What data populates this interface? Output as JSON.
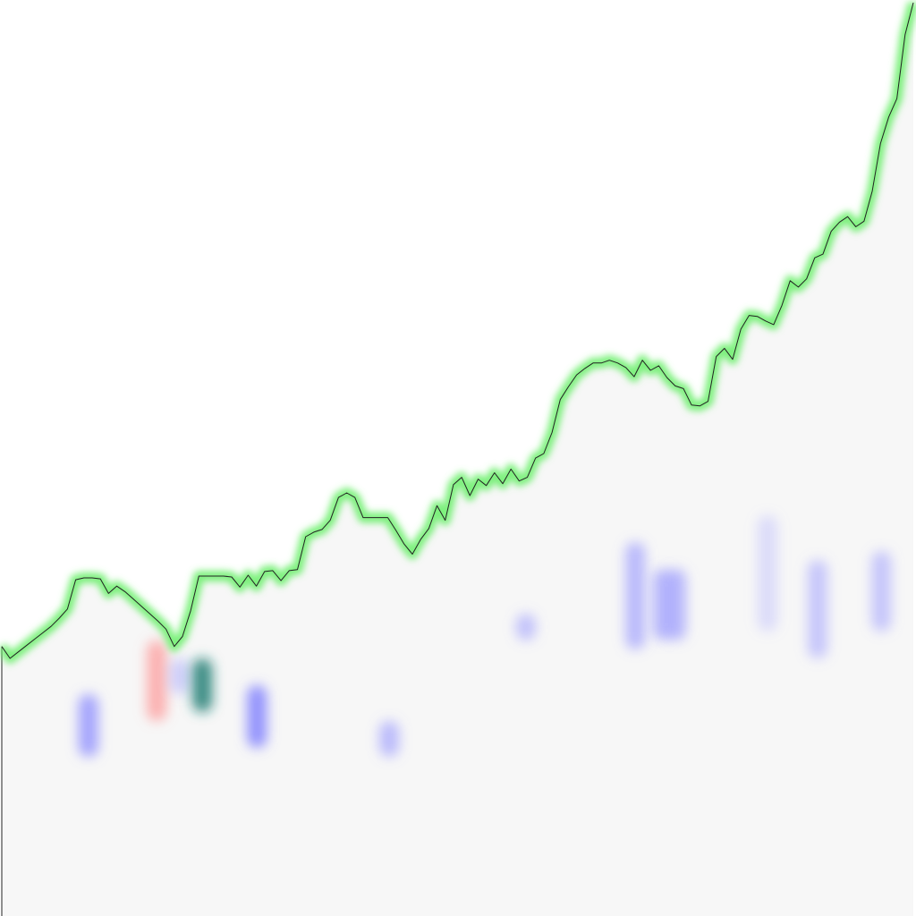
{
  "chart_data": {
    "type": "line",
    "title": "",
    "xlabel": "",
    "ylabel": "",
    "grid": false,
    "legend": "none",
    "xlim": [
      0,
      200
    ],
    "ylim": [
      0,
      100
    ],
    "series": [
      {
        "values": [
          29.6,
          28.3,
          29.0,
          29.7,
          30.4,
          31.1,
          31.8,
          32.7,
          33.7,
          36.9,
          37.1,
          37.1,
          37.0,
          35.4,
          36.2,
          35.6,
          34.8,
          34.0,
          33.2,
          32.4,
          31.5,
          29.6,
          30.7,
          33.5,
          37.3,
          37.3,
          37.3,
          37.3,
          37.2,
          36.1,
          37.4,
          36.2,
          37.8,
          37.9,
          36.8,
          37.9,
          38.0,
          41.6,
          42.1,
          42.4,
          43.4,
          45.9,
          46.4,
          45.9,
          43.7,
          43.7,
          43.7,
          43.7,
          42.3,
          40.8,
          39.7,
          41.3,
          42.5,
          45.0,
          43.4,
          47.3,
          48.1,
          46.1,
          47.9,
          47.2,
          48.6,
          47.4,
          49.0,
          47.7,
          48.1,
          50.2,
          50.7,
          53.0,
          56.6,
          58.0,
          59.3,
          60.0,
          60.6,
          60.6,
          60.9,
          60.6,
          60.1,
          59.1,
          60.9,
          59.8,
          60.3,
          59.0,
          58.1,
          57.8,
          56.0,
          55.9,
          56.4,
          61.3,
          62.2,
          61.0,
          64.3,
          65.8,
          65.7,
          65.2,
          64.8,
          66.9,
          69.6,
          68.9,
          69.8,
          72.1,
          72.5,
          75.0,
          76.0,
          76.6,
          75.5,
          76.1,
          79.4,
          84.6,
          87.5,
          89.5,
          96.5,
          100.0
        ]
      }
    ],
    "blobs": [
      {
        "x": 19,
        "y_from": 18,
        "y_to": 25,
        "color": "#8080ff",
        "opacity": 0.7
      },
      {
        "x": 34,
        "y_from": 22,
        "y_to": 31,
        "color": "#ff8080",
        "opacity": 0.6
      },
      {
        "x": 39,
        "y_from": 25,
        "y_to": 29,
        "color": "#9090ff",
        "opacity": 0.4
      },
      {
        "x": 44,
        "y_from": 23,
        "y_to": 29,
        "color": "#1a7a70",
        "opacity": 0.85
      },
      {
        "x": 56,
        "y_from": 19,
        "y_to": 26,
        "color": "#7070ff",
        "opacity": 0.75
      },
      {
        "x": 85,
        "y_from": 18,
        "y_to": 22,
        "color": "#8080ff",
        "opacity": 0.5
      },
      {
        "x": 115,
        "y_from": 31,
        "y_to": 34,
        "color": "#8080ff",
        "opacity": 0.45
      },
      {
        "x": 139,
        "y_from": 30,
        "y_to": 42,
        "color": "#8585ff",
        "opacity": 0.55
      },
      {
        "x": 145,
        "y_from": 31,
        "y_to": 39,
        "color": "#8585ff",
        "opacity": 0.55
      },
      {
        "x": 148,
        "y_from": 31,
        "y_to": 39,
        "color": "#8585ff",
        "opacity": 0.55
      },
      {
        "x": 168,
        "y_from": 32,
        "y_to": 45,
        "color": "#9a9aff",
        "opacity": 0.3
      },
      {
        "x": 179,
        "y_from": 29,
        "y_to": 40,
        "color": "#8a8aff",
        "opacity": 0.45
      },
      {
        "x": 193,
        "y_from": 32,
        "y_to": 41,
        "color": "#8a8aff",
        "opacity": 0.45
      }
    ],
    "colors": {
      "line": "#222222",
      "glow": "#66ee66",
      "fill": "#f7f7f7"
    }
  }
}
